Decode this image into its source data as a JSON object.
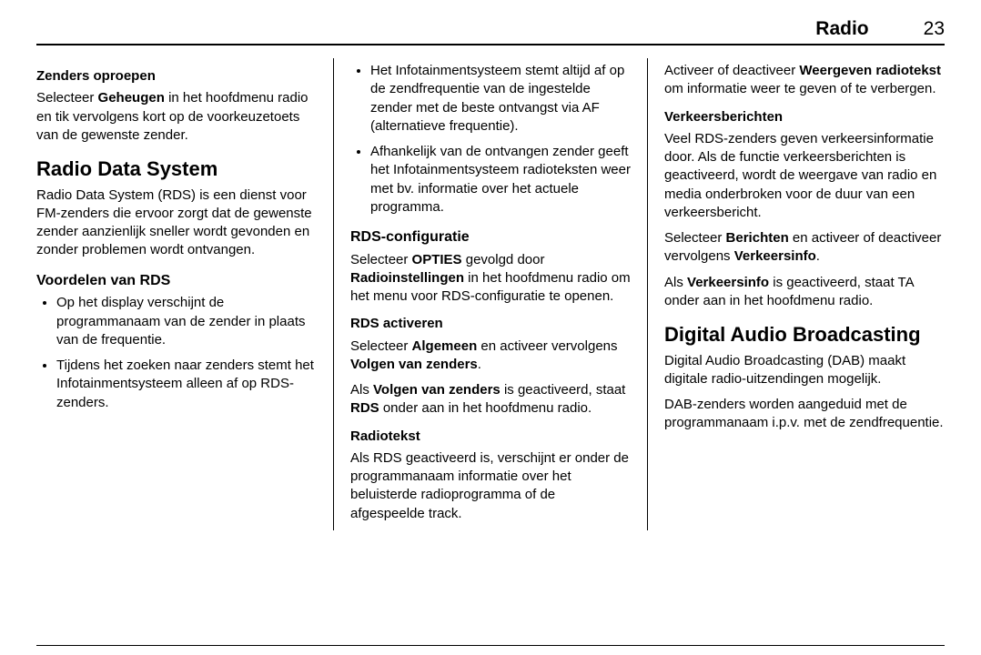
{
  "header": {
    "section": "Radio",
    "page": "23"
  },
  "col1": {
    "h_zenders": "Zenders oproepen",
    "p_zenders_1a": "Selecteer ",
    "p_zenders_1b": "Geheugen",
    "p_zenders_1c": " in het hoofdmenu radio en tik vervolgens kort op de voorkeuzetoets van de gewenste zender.",
    "h_rds": "Radio Data System",
    "p_rds": "Radio Data System (RDS) is een dienst voor FM-zenders die ervoor zorgt dat de gewenste zender aanzienlijk sneller wordt gevonden en zonder problemen wordt ontvangen.",
    "h_voordelen": "Voordelen van RDS",
    "li1": "Op het display verschijnt de programmanaam van de zender in plaats van de frequentie.",
    "li2": "Tijdens het zoeken naar zenders stemt het Infotainmentsysteem alleen af op RDS-zenders."
  },
  "col2": {
    "li1": "Het Infotainmentsysteem stemt altijd af op de zendfrequentie van de ingestelde zender met de beste ontvangst via AF (alternatieve frequentie).",
    "li2": "Afhankelijk van de ontvangen zender geeft het Infotainmentsysteem radioteksten weer met bv. informatie over het actuele programma.",
    "h_config": "RDS-configuratie",
    "p_config_a": "Selecteer ",
    "p_config_b": "OPTIES",
    "p_config_c": " gevolgd door ",
    "p_config_d": "Radioinstellingen",
    "p_config_e": " in het hoofdmenu radio om het menu voor RDS-configuratie te openen.",
    "h_activeren": "RDS activeren",
    "p_act_a": "Selecteer ",
    "p_act_b": "Algemeen",
    "p_act_c": " en activeer vervolgens ",
    "p_act_d": "Volgen van zenders",
    "p_act_e": ".",
    "p_act2_a": "Als ",
    "p_act2_b": "Volgen van zenders",
    "p_act2_c": " is geactiveerd, staat ",
    "p_act2_d": "RDS",
    "p_act2_e": " onder aan in het hoofdmenu radio.",
    "h_radiotekst": "Radiotekst",
    "p_radiotekst": "Als RDS geactiveerd is, verschijnt er onder de programmanaam informatie over het beluisterde radioprogramma of de afgespeelde track."
  },
  "col3": {
    "p_weer_a": "Activeer of deactiveer ",
    "p_weer_b": "Weergeven radiotekst",
    "p_weer_c": " om informatie weer te geven of te verbergen.",
    "h_verkeer": "Verkeersberichten",
    "p_verkeer": "Veel RDS-zenders geven verkeersinformatie door. Als de functie verkeersberichten is geactiveerd, wordt de weergave van radio en media onderbroken voor de duur van een verkeersbericht.",
    "p_ber_a": "Selecteer ",
    "p_ber_b": "Berichten",
    "p_ber_c": " en activeer of deactiveer vervolgens ",
    "p_ber_d": "Verkeersinfo",
    "p_ber_e": ".",
    "p_ta_a": "Als ",
    "p_ta_b": "Verkeersinfo",
    "p_ta_c": " is geactiveerd, staat TA onder aan in het hoofdmenu radio.",
    "h_dab": "Digital Audio Broadcasting",
    "p_dab1": "Digital Audio Broadcasting (DAB) maakt digitale radio-uitzendingen mogelijk.",
    "p_dab2": "DAB-zenders worden aangeduid met de programmanaam i.p.v. met de zendfrequentie."
  }
}
